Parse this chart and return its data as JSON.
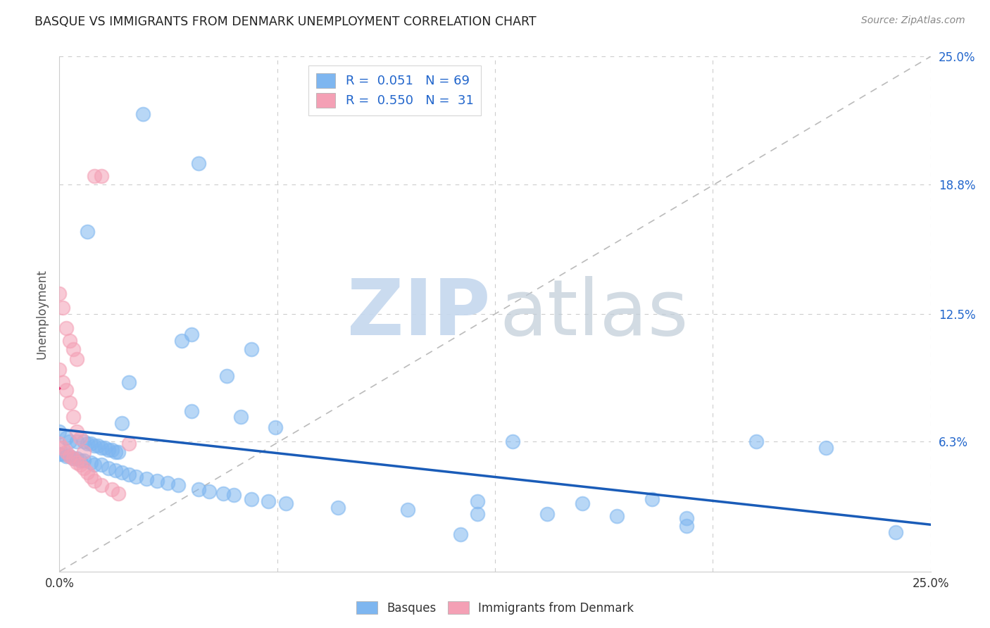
{
  "title": "BASQUE VS IMMIGRANTS FROM DENMARK UNEMPLOYMENT CORRELATION CHART",
  "source": "Source: ZipAtlas.com",
  "ylabel": "Unemployment",
  "basque_color": "#7EB6F0",
  "denmark_color": "#F4A0B5",
  "basque_line_color": "#1A5CB8",
  "denmark_line_color": "#E03070",
  "diagonal_color": "#BBBBBB",
  "basque_points": [
    [
      0.024,
      0.222
    ],
    [
      0.04,
      0.198
    ],
    [
      0.008,
      0.165
    ],
    [
      0.035,
      0.112
    ],
    [
      0.055,
      0.108
    ],
    [
      0.038,
      0.115
    ],
    [
      0.02,
      0.092
    ],
    [
      0.048,
      0.095
    ],
    [
      0.052,
      0.075
    ],
    [
      0.038,
      0.078
    ],
    [
      0.018,
      0.072
    ],
    [
      0.062,
      0.07
    ],
    [
      0.0,
      0.068
    ],
    [
      0.002,
      0.065
    ],
    [
      0.003,
      0.063
    ],
    [
      0.005,
      0.063
    ],
    [
      0.007,
      0.063
    ],
    [
      0.008,
      0.062
    ],
    [
      0.009,
      0.062
    ],
    [
      0.01,
      0.061
    ],
    [
      0.011,
      0.061
    ],
    [
      0.012,
      0.06
    ],
    [
      0.013,
      0.06
    ],
    [
      0.014,
      0.059
    ],
    [
      0.015,
      0.059
    ],
    [
      0.016,
      0.058
    ],
    [
      0.017,
      0.058
    ],
    [
      0.0,
      0.057
    ],
    [
      0.001,
      0.057
    ],
    [
      0.002,
      0.056
    ],
    [
      0.003,
      0.056
    ],
    [
      0.004,
      0.055
    ],
    [
      0.005,
      0.055
    ],
    [
      0.006,
      0.054
    ],
    [
      0.007,
      0.054
    ],
    [
      0.009,
      0.053
    ],
    [
      0.01,
      0.052
    ],
    [
      0.012,
      0.052
    ],
    [
      0.014,
      0.05
    ],
    [
      0.016,
      0.049
    ],
    [
      0.018,
      0.048
    ],
    [
      0.02,
      0.047
    ],
    [
      0.022,
      0.046
    ],
    [
      0.025,
      0.045
    ],
    [
      0.028,
      0.044
    ],
    [
      0.031,
      0.043
    ],
    [
      0.034,
      0.042
    ],
    [
      0.04,
      0.04
    ],
    [
      0.043,
      0.039
    ],
    [
      0.047,
      0.038
    ],
    [
      0.05,
      0.037
    ],
    [
      0.055,
      0.035
    ],
    [
      0.06,
      0.034
    ],
    [
      0.065,
      0.033
    ],
    [
      0.08,
      0.031
    ],
    [
      0.1,
      0.03
    ],
    [
      0.12,
      0.028
    ],
    [
      0.14,
      0.028
    ],
    [
      0.16,
      0.027
    ],
    [
      0.18,
      0.026
    ],
    [
      0.13,
      0.063
    ],
    [
      0.2,
      0.063
    ],
    [
      0.22,
      0.06
    ],
    [
      0.115,
      0.018
    ],
    [
      0.18,
      0.022
    ],
    [
      0.24,
      0.019
    ],
    [
      0.12,
      0.034
    ],
    [
      0.15,
      0.033
    ],
    [
      0.17,
      0.035
    ]
  ],
  "denmark_points": [
    [
      0.0,
      0.135
    ],
    [
      0.001,
      0.128
    ],
    [
      0.002,
      0.118
    ],
    [
      0.003,
      0.112
    ],
    [
      0.004,
      0.108
    ],
    [
      0.005,
      0.103
    ],
    [
      0.0,
      0.098
    ],
    [
      0.001,
      0.092
    ],
    [
      0.002,
      0.088
    ],
    [
      0.003,
      0.082
    ],
    [
      0.004,
      0.075
    ],
    [
      0.005,
      0.068
    ],
    [
      0.006,
      0.065
    ],
    [
      0.007,
      0.058
    ],
    [
      0.01,
      0.192
    ],
    [
      0.012,
      0.192
    ],
    [
      0.0,
      0.062
    ],
    [
      0.001,
      0.06
    ],
    [
      0.002,
      0.058
    ],
    [
      0.003,
      0.056
    ],
    [
      0.004,
      0.055
    ],
    [
      0.005,
      0.053
    ],
    [
      0.006,
      0.052
    ],
    [
      0.007,
      0.05
    ],
    [
      0.008,
      0.048
    ],
    [
      0.009,
      0.046
    ],
    [
      0.01,
      0.044
    ],
    [
      0.012,
      0.042
    ],
    [
      0.015,
      0.04
    ],
    [
      0.017,
      0.038
    ],
    [
      0.02,
      0.062
    ]
  ]
}
